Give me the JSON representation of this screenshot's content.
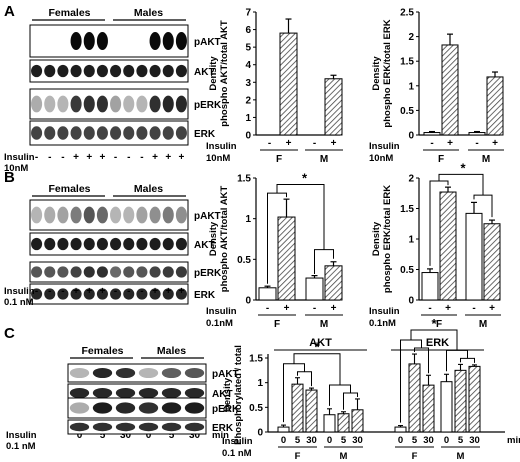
{
  "panel_labels": {
    "a": "A",
    "b": "B",
    "c": "C"
  },
  "blots": {
    "a": {
      "group_left": "Females",
      "group_right": "Males",
      "rows": [
        "pAKT",
        "AKT",
        "pERK",
        "ERK"
      ],
      "insulin_label": "Insulin",
      "dose": "10nM",
      "lanes": [
        "-",
        "-",
        "-",
        "+",
        "+",
        "+",
        "-",
        "-",
        "-",
        "+",
        "+",
        "+"
      ]
    },
    "b": {
      "group_left": "Females",
      "group_right": "Males",
      "rows": [
        "pAKT",
        "AKT",
        "pERK",
        "ERK"
      ],
      "insulin_label": "Insulin",
      "dose": "0.1 nM",
      "lanes": [
        "-",
        "-",
        "-",
        "+",
        "+",
        "+",
        "-",
        "-",
        "-",
        "+",
        "+",
        "+"
      ]
    },
    "c": {
      "group_left": "Females",
      "group_right": "Males",
      "rows": [
        "pAKT",
        "AKT",
        "pERK",
        "ERK"
      ],
      "insulin_label": "Insulin",
      "dose": "0.1 nM",
      "lanes": [
        "0",
        "5",
        "30",
        "0",
        "5",
        "30"
      ],
      "unit": "min"
    }
  },
  "chart_data": [
    {
      "id": "a-akt",
      "type": "bar",
      "ylabel": [
        "Density",
        "phospho AKT/total AKT"
      ],
      "ylim": [
        0,
        7
      ],
      "yticks": [
        0,
        1,
        2,
        3,
        4,
        5,
        6,
        7
      ],
      "bars": [
        {
          "group": "F",
          "insulin": "-",
          "value": 0,
          "err": 0
        },
        {
          "group": "F",
          "insulin": "+",
          "value": 5.8,
          "err": 0.8
        },
        {
          "group": "M",
          "insulin": "-",
          "value": 0,
          "err": 0
        },
        {
          "group": "M",
          "insulin": "+",
          "value": 3.2,
          "err": 0.2
        }
      ],
      "insulin_label": "Insulin",
      "dose": "10nM",
      "groups": [
        "F",
        "M"
      ]
    },
    {
      "id": "a-erk",
      "type": "bar",
      "ylabel": [
        "Density",
        "phospho ERK/total ERK"
      ],
      "ylim": [
        0,
        2.5
      ],
      "yticks": [
        0,
        0.5,
        1,
        1.5,
        2,
        2.5
      ],
      "bars": [
        {
          "group": "F",
          "insulin": "-",
          "value": 0.05,
          "err": 0.02
        },
        {
          "group": "F",
          "insulin": "+",
          "value": 1.83,
          "err": 0.22
        },
        {
          "group": "M",
          "insulin": "-",
          "value": 0.05,
          "err": 0.02
        },
        {
          "group": "M",
          "insulin": "+",
          "value": 1.18,
          "err": 0.1
        }
      ],
      "insulin_label": "Insulin",
      "dose": "10nM",
      "groups": [
        "F",
        "M"
      ]
    },
    {
      "id": "b-akt",
      "type": "bar",
      "ylabel": [
        "Density",
        "phospho AKT/total AKT"
      ],
      "ylim": [
        0,
        1.5
      ],
      "yticks": [
        0,
        0.5,
        1,
        1.5
      ],
      "bars": [
        {
          "group": "F",
          "insulin": "-",
          "value": 0.15,
          "err": 0.02
        },
        {
          "group": "F",
          "insulin": "+",
          "value": 1.02,
          "err": 0.22
        },
        {
          "group": "M",
          "insulin": "-",
          "value": 0.27,
          "err": 0.03
        },
        {
          "group": "M",
          "insulin": "+",
          "value": 0.42,
          "err": 0.05
        }
      ],
      "significance": "*",
      "insulin_label": "Insulin",
      "dose": "0.1nM",
      "groups": [
        "F",
        "M"
      ]
    },
    {
      "id": "b-erk",
      "type": "bar",
      "ylabel": [
        "Density",
        "phospho ERK/total ERK"
      ],
      "ylim": [
        0,
        2
      ],
      "yticks": [
        0,
        0.5,
        1,
        1.5,
        2
      ],
      "bars": [
        {
          "group": "F",
          "insulin": "-",
          "value": 0.45,
          "err": 0.06
        },
        {
          "group": "F",
          "insulin": "+",
          "value": 1.77,
          "err": 0.08
        },
        {
          "group": "M",
          "insulin": "-",
          "value": 1.42,
          "err": 0.18
        },
        {
          "group": "M",
          "insulin": "+",
          "value": 1.25,
          "err": 0.06
        }
      ],
      "significance": "*",
      "insulin_label": "Insulin",
      "dose": "0.1nM",
      "groups": [
        "F",
        "M"
      ]
    },
    {
      "id": "c",
      "type": "bar",
      "ylabel": [
        "Density",
        "Phosphorylated / total"
      ],
      "ylim": [
        0,
        1.5
      ],
      "yticks": [
        0,
        0.5,
        1,
        1.5
      ],
      "panels": [
        {
          "title": "AKT",
          "groups": [
            {
              "name": "F",
              "bars": [
                {
                  "time": "0",
                  "value": 0.1,
                  "err": 0.04
                },
                {
                  "time": "5",
                  "value": 0.97,
                  "err": 0.13
                },
                {
                  "time": "30",
                  "value": 0.85,
                  "err": 0.04
                }
              ]
            },
            {
              "name": "M",
              "bars": [
                {
                  "time": "0",
                  "value": 0.35,
                  "err": 0.12
                },
                {
                  "time": "5",
                  "value": 0.37,
                  "err": 0.04
                },
                {
                  "time": "30",
                  "value": 0.45,
                  "err": 0.22
                }
              ]
            }
          ]
        },
        {
          "title": "ERK",
          "groups": [
            {
              "name": "F",
              "bars": [
                {
                  "time": "0",
                  "value": 0.1,
                  "err": 0.03
                },
                {
                  "time": "5",
                  "value": 1.38,
                  "err": 0.2
                },
                {
                  "time": "30",
                  "value": 0.95,
                  "err": 0.2
                }
              ]
            },
            {
              "name": "M",
              "bars": [
                {
                  "time": "0",
                  "value": 1.02,
                  "err": 0.15
                },
                {
                  "time": "5",
                  "value": 1.25,
                  "err": 0.12
                },
                {
                  "time": "30",
                  "value": 1.33,
                  "err": 0.03
                }
              ]
            }
          ]
        }
      ],
      "significance": "*",
      "insulin_label": "Insulin",
      "dose": "0.1 nM",
      "unit": "min"
    }
  ]
}
